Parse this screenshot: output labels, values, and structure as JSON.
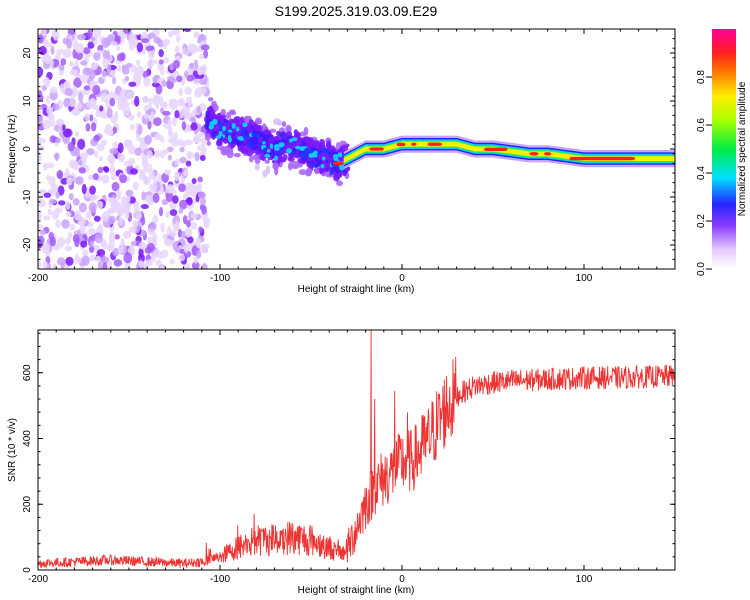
{
  "title": "S199.2025.319.03.09.E29",
  "chart_data": [
    {
      "type": "heatmap",
      "name": "spectrogram",
      "xlabel": "Height of straight line (km)",
      "ylabel": "Frequency (Hz)",
      "xlim": [
        -200,
        150
      ],
      "ylim": [
        -25,
        25
      ],
      "xticks": [
        -200,
        -100,
        0,
        100
      ],
      "xtick_labels": [
        "-200",
        "-100",
        "0",
        "100"
      ],
      "yticks": [
        -20,
        -10,
        0,
        10,
        20
      ],
      "ytick_labels": [
        "-20",
        "-10",
        "0",
        "10",
        "20"
      ],
      "ridge": {
        "x": [
          -110,
          -100,
          -90,
          -80,
          -70,
          -60,
          -50,
          -40,
          -35,
          -30,
          -20,
          -10,
          0,
          10,
          20,
          30,
          40,
          50,
          60,
          70,
          80,
          90,
          100,
          110,
          120,
          130,
          140,
          150
        ],
        "freq": [
          7,
          4,
          3,
          2,
          0,
          1,
          -1,
          -2,
          -3,
          -2,
          0,
          0,
          1,
          1,
          1,
          1,
          0,
          0,
          -0.5,
          -1,
          -1,
          -1.5,
          -2,
          -2,
          -2,
          -2,
          -2,
          -2
        ]
      },
      "colorbar": {
        "label": "Normalized spectral amplitude",
        "range": [
          0,
          1
        ],
        "ticks": [
          "0.0",
          "0.2",
          "0.4",
          "0.6",
          "0.8"
        ]
      }
    },
    {
      "type": "line",
      "name": "snr",
      "xlabel": "Height of straight line (km)",
      "ylabel": "SNR (10 * v/v)",
      "xlim": [
        -200,
        150
      ],
      "ylim": [
        0,
        730
      ],
      "xticks": [
        -200,
        -100,
        0,
        100
      ],
      "xtick_labels": [
        "-200",
        "-100",
        "0",
        "100"
      ],
      "yticks": [
        0,
        200,
        400,
        600
      ],
      "ytick_labels": [
        "0",
        "200",
        "400",
        "600"
      ],
      "color": "#ee3333",
      "trend": {
        "x": [
          -200,
          -180,
          -160,
          -140,
          -120,
          -110,
          -100,
          -90,
          -80,
          -70,
          -60,
          -50,
          -40,
          -35,
          -30,
          -25,
          -20,
          -15,
          -10,
          -5,
          0,
          5,
          10,
          15,
          20,
          25,
          30,
          40,
          50,
          60,
          80,
          100,
          120,
          150
        ],
        "snr": [
          20,
          25,
          30,
          25,
          20,
          25,
          40,
          70,
          90,
          95,
          100,
          90,
          70,
          50,
          60,
          130,
          200,
          250,
          280,
          300,
          330,
          330,
          360,
          400,
          450,
          500,
          530,
          560,
          570,
          575,
          580,
          585,
          585,
          590
        ]
      },
      "spikes": [
        {
          "x": -17,
          "snr": 730
        },
        {
          "x": -15,
          "snr": 520
        },
        {
          "x": -4,
          "snr": 545
        },
        {
          "x": 3,
          "snr": 480
        },
        {
          "x": 11,
          "snr": 470
        }
      ]
    }
  ]
}
